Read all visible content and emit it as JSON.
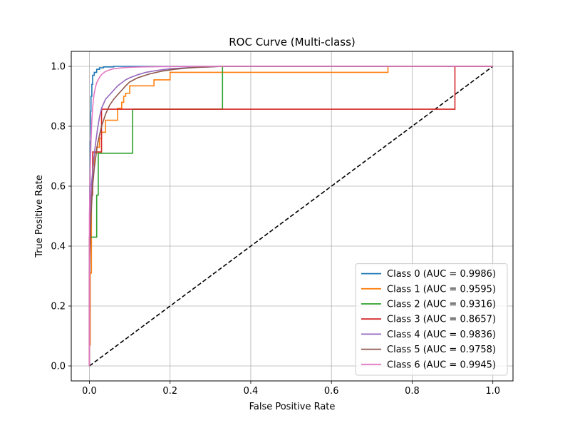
{
  "chart_data": {
    "type": "line",
    "title": "ROC Curve (Multi-class)",
    "xlabel": "False Positive Rate",
    "ylabel": "True Positive Rate",
    "xlim": [
      -0.045,
      1.05
    ],
    "ylim": [
      -0.05,
      1.05
    ],
    "xticks": [
      0.0,
      0.2,
      0.4,
      0.6,
      0.8,
      1.0
    ],
    "yticks": [
      0.0,
      0.2,
      0.4,
      0.6,
      0.8,
      1.0
    ],
    "tick_labels_x": [
      "0.0",
      "0.2",
      "0.4",
      "0.6",
      "0.8",
      "1.0"
    ],
    "tick_labels_y": [
      "0.0",
      "0.2",
      "0.4",
      "0.6",
      "0.8",
      "1.0"
    ],
    "grid": true,
    "legend_position": "lower-right",
    "diagonal": {
      "x": [
        0,
        1
      ],
      "y": [
        0,
        1
      ],
      "color": "#000000",
      "style": "dashed"
    },
    "series": [
      {
        "name": "Class 0 (AUC = 0.9986)",
        "color": "#1f77b4",
        "x": [
          0,
          0,
          0.001,
          0.001,
          0.002,
          0.002,
          0.003,
          0.003,
          0.004,
          0.004,
          0.006,
          0.006,
          0.008,
          0.008,
          0.012,
          0.012,
          0.018,
          0.018,
          0.025,
          0.025,
          0.035,
          0.035,
          0.06,
          0.06,
          1.0
        ],
        "y": [
          0,
          0.3,
          0.3,
          0.6,
          0.6,
          0.75,
          0.75,
          0.85,
          0.85,
          0.9,
          0.9,
          0.94,
          0.94,
          0.97,
          0.97,
          0.98,
          0.98,
          0.99,
          0.99,
          0.995,
          0.995,
          0.998,
          0.998,
          1.0,
          1.0
        ]
      },
      {
        "name": "Class 1 (AUC = 0.9595)",
        "color": "#ff7f0e",
        "x": [
          0,
          0,
          0.002,
          0.002,
          0.005,
          0.005,
          0.008,
          0.008,
          0.012,
          0.012,
          0.018,
          0.018,
          0.025,
          0.025,
          0.03,
          0.03,
          0.04,
          0.04,
          0.05,
          0.05,
          0.07,
          0.07,
          0.08,
          0.08,
          0.085,
          0.085,
          0.09,
          0.09,
          0.1,
          0.1,
          0.16,
          0.16,
          0.2,
          0.2,
          0.74,
          0.74,
          1.0
        ],
        "y": [
          0,
          0.07,
          0.07,
          0.31,
          0.31,
          0.6,
          0.6,
          0.67,
          0.67,
          0.71,
          0.71,
          0.73,
          0.73,
          0.76,
          0.76,
          0.78,
          0.78,
          0.82,
          0.82,
          0.82,
          0.82,
          0.86,
          0.86,
          0.88,
          0.88,
          0.9,
          0.9,
          0.91,
          0.91,
          0.935,
          0.935,
          0.955,
          0.955,
          0.98,
          0.98,
          1.0,
          1.0
        ]
      },
      {
        "name": "Class 2 (AUC = 0.9316)",
        "color": "#2ca02c",
        "x": [
          0,
          0,
          0.002,
          0.002,
          0.018,
          0.018,
          0.022,
          0.022,
          0.107,
          0.107,
          0.33,
          0.33,
          1.0
        ],
        "y": [
          0,
          0.43,
          0.43,
          0.43,
          0.43,
          0.57,
          0.57,
          0.71,
          0.71,
          0.857,
          0.857,
          1.0,
          1.0
        ]
      },
      {
        "name": "Class 3 (AUC = 0.8657)",
        "color": "#d62728",
        "x": [
          0,
          0,
          0.003,
          0.003,
          0.008,
          0.008,
          0.03,
          0.03,
          0.906,
          0.906,
          1.0
        ],
        "y": [
          0,
          0.43,
          0.43,
          0.57,
          0.57,
          0.714,
          0.714,
          0.857,
          0.857,
          1.0,
          1.0
        ]
      },
      {
        "name": "Class 4 (AUC = 0.9836)",
        "color": "#9467bd",
        "x": [
          0,
          0,
          0.002,
          0.005,
          0.01,
          0.015,
          0.02,
          0.025,
          0.03,
          0.035,
          0.04,
          0.05,
          0.06,
          0.07,
          0.08,
          0.09,
          0.1,
          0.12,
          0.14,
          0.17,
          0.2,
          0.25,
          0.3,
          0.33,
          1.0
        ],
        "y": [
          0,
          0.35,
          0.5,
          0.6,
          0.68,
          0.74,
          0.79,
          0.83,
          0.86,
          0.875,
          0.89,
          0.905,
          0.92,
          0.935,
          0.945,
          0.955,
          0.962,
          0.972,
          0.98,
          0.987,
          0.992,
          0.996,
          0.998,
          1.0,
          1.0
        ]
      },
      {
        "name": "Class 5 (AUC = 0.9758)",
        "color": "#8c564b",
        "x": [
          0,
          0,
          0.004,
          0.008,
          0.012,
          0.016,
          0.02,
          0.025,
          0.03,
          0.035,
          0.04,
          0.05,
          0.06,
          0.07,
          0.08,
          0.09,
          0.1,
          0.12,
          0.15,
          0.18,
          0.21,
          0.24,
          0.27,
          0.31,
          0.32,
          1.0
        ],
        "y": [
          0,
          0.3,
          0.5,
          0.6,
          0.66,
          0.7,
          0.74,
          0.77,
          0.8,
          0.82,
          0.84,
          0.87,
          0.89,
          0.905,
          0.92,
          0.935,
          0.948,
          0.962,
          0.975,
          0.984,
          0.99,
          0.994,
          0.997,
          0.999,
          1.0,
          1.0
        ]
      },
      {
        "name": "Class 6 (AUC = 0.9945)",
        "color": "#e377c2",
        "x": [
          0,
          0,
          0.002,
          0.004,
          0.006,
          0.008,
          0.01,
          0.012,
          0.015,
          0.018,
          0.022,
          0.026,
          0.03,
          0.035,
          0.04,
          0.05,
          0.06,
          0.08,
          0.1,
          0.13,
          0.17,
          0.22,
          0.28,
          1.0
        ],
        "y": [
          0,
          0.5,
          0.65,
          0.75,
          0.82,
          0.86,
          0.89,
          0.91,
          0.93,
          0.945,
          0.955,
          0.965,
          0.972,
          0.978,
          0.983,
          0.988,
          0.992,
          0.995,
          0.997,
          0.998,
          0.999,
          0.9995,
          1.0,
          1.0
        ]
      }
    ]
  }
}
